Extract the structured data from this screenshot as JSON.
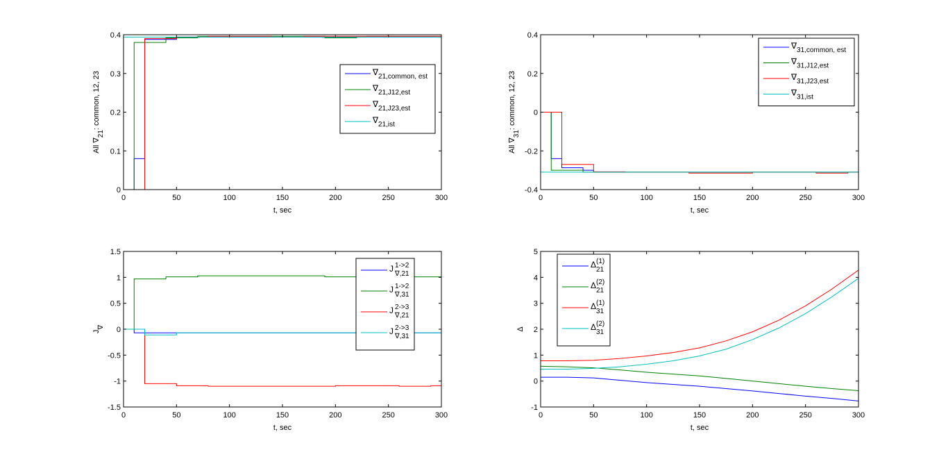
{
  "chart_data": [
    {
      "type": "line",
      "id": "grad21",
      "xlabel": "t, sec",
      "ylabel": {
        "pre": "All ∇",
        "sub": "21",
        "post": ": common, 12, 23"
      },
      "xlim": [
        0,
        300
      ],
      "ylim": [
        0,
        0.4
      ],
      "xticks": [
        0,
        50,
        100,
        150,
        200,
        250,
        300
      ],
      "yticks": [
        0,
        0.1,
        0.2,
        0.3,
        0.4
      ],
      "legend_position": "right",
      "step": true,
      "series": [
        {
          "name": {
            "base": "∇",
            "sub": "21,common, est",
            "sup": ""
          },
          "color": "#0000ff",
          "points": [
            [
              0,
              0
            ],
            [
              10,
              0.08
            ],
            [
              20,
              0.388
            ],
            [
              50,
              0.394
            ],
            [
              300,
              0.394
            ]
          ]
        },
        {
          "name": {
            "base": "∇",
            "sub": "21,J12,est",
            "sup": ""
          },
          "color": "#008000",
          "points": [
            [
              0,
              0
            ],
            [
              10,
              0.38
            ],
            [
              40,
              0.392
            ],
            [
              70,
              0.396
            ],
            [
              190,
              0.392
            ],
            [
              220,
              0.394
            ],
            [
              230,
              0.396
            ],
            [
              300,
              0.396
            ]
          ]
        },
        {
          "name": {
            "base": "∇",
            "sub": "21,J23,est",
            "sup": ""
          },
          "color": "#ff0000",
          "points": [
            [
              0,
              0
            ],
            [
              20,
              0.39
            ],
            [
              50,
              0.394
            ],
            [
              80,
              0.396
            ],
            [
              140,
              0.394
            ],
            [
              170,
              0.396
            ],
            [
              300,
              0.396
            ]
          ]
        },
        {
          "name": {
            "base": "∇",
            "sub": "21,ist",
            "sup": ""
          },
          "color": "#00bfbf",
          "points": [
            [
              0,
              0.394
            ],
            [
              300,
              0.394
            ]
          ]
        }
      ]
    },
    {
      "type": "line",
      "id": "grad31",
      "xlabel": "t, sec",
      "ylabel": {
        "pre": "All ∇",
        "sub": "31",
        "post": ": common, 12, 23"
      },
      "xlim": [
        0,
        300
      ],
      "ylim": [
        -0.4,
        0.4
      ],
      "xticks": [
        0,
        50,
        100,
        150,
        200,
        250,
        300
      ],
      "yticks": [
        -0.4,
        -0.2,
        0,
        0.2,
        0.4
      ],
      "legend_position": "top-right",
      "step": true,
      "series": [
        {
          "name": {
            "base": "∇",
            "sub": "31,common, est",
            "sup": ""
          },
          "color": "#0000ff",
          "points": [
            [
              0,
              0
            ],
            [
              10,
              -0.24
            ],
            [
              20,
              -0.287
            ],
            [
              40,
              -0.3
            ],
            [
              50,
              -0.31
            ],
            [
              300,
              -0.31
            ]
          ]
        },
        {
          "name": {
            "base": "∇",
            "sub": "31,J12,est",
            "sup": ""
          },
          "color": "#008000",
          "points": [
            [
              0,
              0
            ],
            [
              10,
              -0.3
            ],
            [
              40,
              -0.31
            ],
            [
              300,
              -0.31
            ]
          ]
        },
        {
          "name": {
            "base": "∇",
            "sub": "31,J23,est",
            "sup": ""
          },
          "color": "#ff0000",
          "points": [
            [
              0,
              0
            ],
            [
              20,
              -0.27
            ],
            [
              50,
              -0.308
            ],
            [
              80,
              -0.31
            ],
            [
              140,
              -0.315
            ],
            [
              200,
              -0.31
            ],
            [
              260,
              -0.315
            ],
            [
              290,
              -0.31
            ],
            [
              300,
              -0.31
            ]
          ]
        },
        {
          "name": {
            "base": "∇",
            "sub": "31,ist",
            "sup": ""
          },
          "color": "#00bfbf",
          "points": [
            [
              0,
              -0.31
            ],
            [
              300,
              -0.31
            ]
          ]
        }
      ]
    },
    {
      "type": "line",
      "id": "jgrad",
      "xlabel": "t, sec",
      "ylabel": {
        "pre": "J",
        "sub": "∇",
        "post": ""
      },
      "xlim": [
        0,
        300
      ],
      "ylim": [
        -1.5,
        1.5
      ],
      "xticks": [
        0,
        50,
        100,
        150,
        200,
        250,
        300
      ],
      "yticks": [
        -1.5,
        -1,
        -0.5,
        0,
        0.5,
        1,
        1.5
      ],
      "legend_position": "top-right",
      "step": true,
      "series": [
        {
          "name": {
            "base": "J",
            "sub": "∇,21",
            "sup": "1->2"
          },
          "color": "#0000ff",
          "points": [
            [
              0,
              0
            ],
            [
              10,
              -0.07
            ],
            [
              300,
              -0.07
            ]
          ]
        },
        {
          "name": {
            "base": "J",
            "sub": "∇,31",
            "sup": "1->2"
          },
          "color": "#008000",
          "points": [
            [
              0,
              0
            ],
            [
              10,
              0.97
            ],
            [
              40,
              1.01
            ],
            [
              70,
              1.03
            ],
            [
              190,
              1.01
            ],
            [
              300,
              1.03
            ]
          ]
        },
        {
          "name": {
            "base": "J",
            "sub": "∇,21",
            "sup": "2->3"
          },
          "color": "#ff0000",
          "points": [
            [
              0,
              0
            ],
            [
              20,
              -1.05
            ],
            [
              50,
              -1.09
            ],
            [
              80,
              -1.1
            ],
            [
              200,
              -1.09
            ],
            [
              260,
              -1.1
            ],
            [
              290,
              -1.09
            ],
            [
              300,
              -1.09
            ]
          ]
        },
        {
          "name": {
            "base": "J",
            "sub": "∇,31",
            "sup": "2->3"
          },
          "color": "#00bfbf",
          "points": [
            [
              0,
              0
            ],
            [
              20,
              -0.11
            ],
            [
              50,
              -0.07
            ],
            [
              300,
              -0.07
            ]
          ]
        }
      ]
    },
    {
      "type": "line",
      "id": "delta",
      "xlabel": "t, sec",
      "ylabel": {
        "pre": "Δ",
        "sub": "",
        "post": ""
      },
      "xlim": [
        0,
        300
      ],
      "ylim": [
        -1,
        5
      ],
      "xticks": [
        0,
        50,
        100,
        150,
        200,
        250,
        300
      ],
      "yticks": [
        -1,
        0,
        1,
        2,
        3,
        4,
        5
      ],
      "legend_position": "top-left",
      "step": false,
      "series": [
        {
          "name": {
            "base": "Δ",
            "sub": "21",
            "sup": "(1)"
          },
          "color": "#0000ff",
          "points": [
            [
              0,
              0.15
            ],
            [
              25,
              0.15
            ],
            [
              50,
              0.12
            ],
            [
              75,
              0.03
            ],
            [
              100,
              -0.06
            ],
            [
              125,
              -0.13
            ],
            [
              150,
              -0.2
            ],
            [
              175,
              -0.29
            ],
            [
              200,
              -0.38
            ],
            [
              225,
              -0.48
            ],
            [
              250,
              -0.58
            ],
            [
              275,
              -0.67
            ],
            [
              300,
              -0.77
            ]
          ]
        },
        {
          "name": {
            "base": "Δ",
            "sub": "21",
            "sup": "(2)"
          },
          "color": "#008000",
          "points": [
            [
              0,
              0.57
            ],
            [
              25,
              0.55
            ],
            [
              50,
              0.51
            ],
            [
              75,
              0.43
            ],
            [
              100,
              0.34
            ],
            [
              125,
              0.27
            ],
            [
              150,
              0.2
            ],
            [
              175,
              0.1
            ],
            [
              200,
              0.0
            ],
            [
              225,
              -0.1
            ],
            [
              250,
              -0.2
            ],
            [
              275,
              -0.29
            ],
            [
              300,
              -0.37
            ]
          ]
        },
        {
          "name": {
            "base": "Δ",
            "sub": "31",
            "sup": "(1)"
          },
          "color": "#ff0000",
          "points": [
            [
              0,
              0.78
            ],
            [
              25,
              0.78
            ],
            [
              50,
              0.8
            ],
            [
              75,
              0.87
            ],
            [
              100,
              0.97
            ],
            [
              125,
              1.1
            ],
            [
              150,
              1.28
            ],
            [
              175,
              1.55
            ],
            [
              200,
              1.9
            ],
            [
              225,
              2.35
            ],
            [
              250,
              2.9
            ],
            [
              275,
              3.55
            ],
            [
              300,
              4.28
            ]
          ]
        },
        {
          "name": {
            "base": "Δ",
            "sub": "31",
            "sup": "(2)"
          },
          "color": "#00bfbf",
          "points": [
            [
              0,
              0.46
            ],
            [
              25,
              0.46
            ],
            [
              50,
              0.49
            ],
            [
              75,
              0.55
            ],
            [
              100,
              0.65
            ],
            [
              125,
              0.78
            ],
            [
              150,
              0.97
            ],
            [
              175,
              1.23
            ],
            [
              200,
              1.6
            ],
            [
              225,
              2.05
            ],
            [
              250,
              2.6
            ],
            [
              275,
              3.25
            ],
            [
              300,
              3.96
            ]
          ]
        }
      ]
    }
  ]
}
